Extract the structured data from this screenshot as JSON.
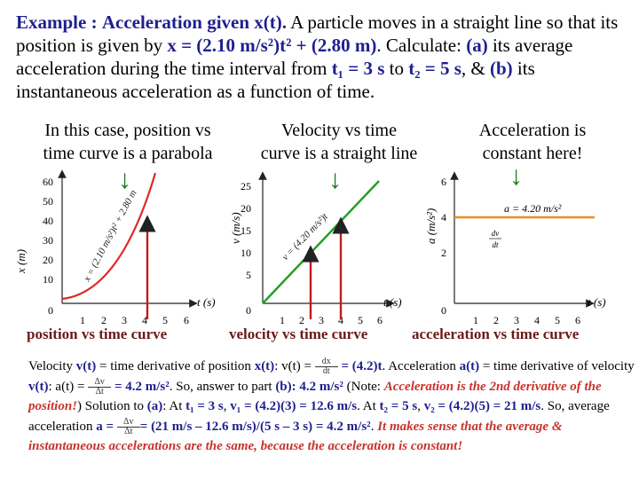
{
  "intro": {
    "example_label": "Example :",
    "title": "Acceleration given x(t).",
    "p1": " A particle moves in a straight line so that its position is given by ",
    "equation": "x = (2.10 m/s²)t² + (2.80 m)",
    "p2": ". Calculate: ",
    "part_a_label": "(a)",
    "p3": " its average acceleration during the time interval from ",
    "t1": "t₁ = 3 s",
    "p4": " to ",
    "t2": "t₂ = 5 s",
    "p5": ", & ",
    "part_b_label": "(b)",
    "p6": " its instantaneous acceleration as a function of time."
  },
  "captions": {
    "c1_line1": "In this case, position vs",
    "c1_line2": "time curve is a parabola",
    "c2_line1": "Velocity vs time",
    "c2_line2": "curve is a straight line",
    "c3_line1": "Acceleration is",
    "c3_line2": "constant here!"
  },
  "graphs": {
    "pos": {
      "y_ticks": [
        "60",
        "50",
        "40",
        "30",
        "20",
        "10",
        "0"
      ],
      "x_ticks": [
        "1",
        "2",
        "3",
        "4",
        "5",
        "6"
      ],
      "x_axis_label": "t (s)",
      "y_axis_label": "x (m)",
      "curve_label": "x = (2.10 m/s²)t² + 2.80 m"
    },
    "vel": {
      "y_ticks": [
        "25",
        "20",
        "15",
        "10",
        "5",
        "0"
      ],
      "x_ticks": [
        "1",
        "2",
        "3",
        "4",
        "5",
        "6"
      ],
      "x_axis_label": "t (s)",
      "y_axis_label": "v (m/s)",
      "curve_label": "v = (4.20 m/s²)t"
    },
    "acc": {
      "y_ticks": [
        "6",
        "4",
        "2",
        "0"
      ],
      "x_ticks": [
        "1",
        "2",
        "3",
        "4",
        "5",
        "6"
      ],
      "x_axis_label": "t (s)",
      "y_axis_label": "a (m/s²)",
      "curve_label": "a = 4.20 m/s²",
      "deriv_top": "dv",
      "deriv_bot": "dt"
    }
  },
  "subcaptions": {
    "pos": "position vs time curve",
    "vel": "velocity vs time curve",
    "acc": "acceleration vs time curve"
  },
  "body": {
    "s1a": "Velocity ",
    "vt": "v(t)",
    "s1b": " = time derivative of position ",
    "xt": "x(t)",
    "s1c": ": v(t) = ",
    "dx_top": "dx",
    "dx_bot": "dt",
    "s1d": " = (4.2)t",
    "s1e": ". Acceleration ",
    "at": "a(t)",
    "s1f": " = time derivative of velocity ",
    "vt2": "v(t)",
    "s1g": ": a(t) = ",
    "dv_top": "Δv",
    "dv_bot": "Δt",
    "s1h": " = 4.2 m/s²",
    "s1i": ". So, answer to part ",
    "pb": "(b): 4.2 m/s²",
    "note_open": "(Note: ",
    "note_text": "Acceleration is the 2nd derivative of the position!",
    "note_close": ") Solution to ",
    "pa": "(a)",
    "s2a": ": At ",
    "t1": "t₁ = 3 s",
    "s2b": ", ",
    "v1": "v₁ = (4.2)(3) = 12.6 m/s",
    "s2c": ". At ",
    "t2": "t₂ = 5 s",
    "s2d": ", ",
    "v2": "v₂ = (4.2)(5) = 21 m/s",
    "s2e": ". So, average acceleration ",
    "a_eq": "a = ",
    "a_expr": "= (21 m/s – 12.6 m/s)/(5 s – 3 s) = 4.2 m/s²",
    "s2f": ". ",
    "conclusion": "It makes sense that the average & instantaneous accelerations are the same, because the acceleration is constant!"
  },
  "colors": {
    "blue_text": "#1f1f8f",
    "red_text": "#b22020",
    "arrow_green": "#1a7a1a",
    "curve_red": "#e02828",
    "line_green": "#1fa01f",
    "acc_orange": "#f08a1a",
    "marker_red": "#c41a1a"
  }
}
